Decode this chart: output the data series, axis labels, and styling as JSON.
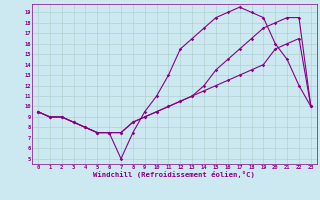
{
  "xlabel": "Windchill (Refroidissement éolien,°C)",
  "bg_color": "#cce8f0",
  "line_color": "#880088",
  "grid_color": "#aaccc8",
  "ylim": [
    4.5,
    19.8
  ],
  "xlim": [
    -0.5,
    23.5
  ],
  "yticks": [
    5,
    6,
    7,
    8,
    9,
    10,
    11,
    12,
    13,
    14,
    15,
    16,
    17,
    18,
    19
  ],
  "xticks": [
    0,
    1,
    2,
    3,
    4,
    5,
    6,
    7,
    8,
    9,
    10,
    11,
    12,
    13,
    14,
    15,
    16,
    17,
    18,
    19,
    20,
    21,
    22,
    23
  ],
  "line1_x": [
    0,
    1,
    2,
    3,
    4,
    5,
    6,
    7,
    8,
    9,
    10,
    11,
    12,
    13,
    14,
    15,
    16,
    17,
    18,
    19,
    20,
    21,
    22,
    23
  ],
  "line1_y": [
    9.5,
    9.0,
    9.0,
    8.5,
    8.0,
    7.5,
    7.5,
    5.0,
    7.5,
    9.5,
    11.0,
    13.0,
    15.5,
    16.5,
    17.5,
    18.5,
    19.0,
    19.5,
    19.0,
    18.5,
    16.0,
    14.5,
    12.0,
    10.0
  ],
  "line2_x": [
    0,
    1,
    2,
    3,
    4,
    5,
    6,
    7,
    8,
    9,
    10,
    11,
    12,
    13,
    14,
    15,
    16,
    17,
    18,
    19,
    20,
    21,
    22,
    23
  ],
  "line2_y": [
    9.5,
    9.0,
    9.0,
    8.5,
    8.0,
    7.5,
    7.5,
    7.5,
    8.5,
    9.0,
    9.5,
    10.0,
    10.5,
    11.0,
    11.5,
    12.0,
    12.5,
    13.0,
    13.5,
    14.0,
    15.5,
    16.0,
    16.5,
    10.0
  ],
  "line3_x": [
    0,
    1,
    2,
    3,
    4,
    5,
    6,
    7,
    8,
    9,
    10,
    11,
    12,
    13,
    14,
    15,
    16,
    17,
    18,
    19,
    20,
    21,
    22,
    23
  ],
  "line3_y": [
    9.5,
    9.0,
    9.0,
    8.5,
    8.0,
    7.5,
    7.5,
    7.5,
    8.5,
    9.0,
    9.5,
    10.0,
    10.5,
    11.0,
    12.0,
    13.5,
    14.5,
    15.5,
    16.5,
    17.5,
    18.0,
    18.5,
    18.5,
    10.0
  ],
  "tick_fontsize": 4.0,
  "xlabel_fontsize": 5.2,
  "marker_size": 1.8,
  "line_width": 0.8
}
